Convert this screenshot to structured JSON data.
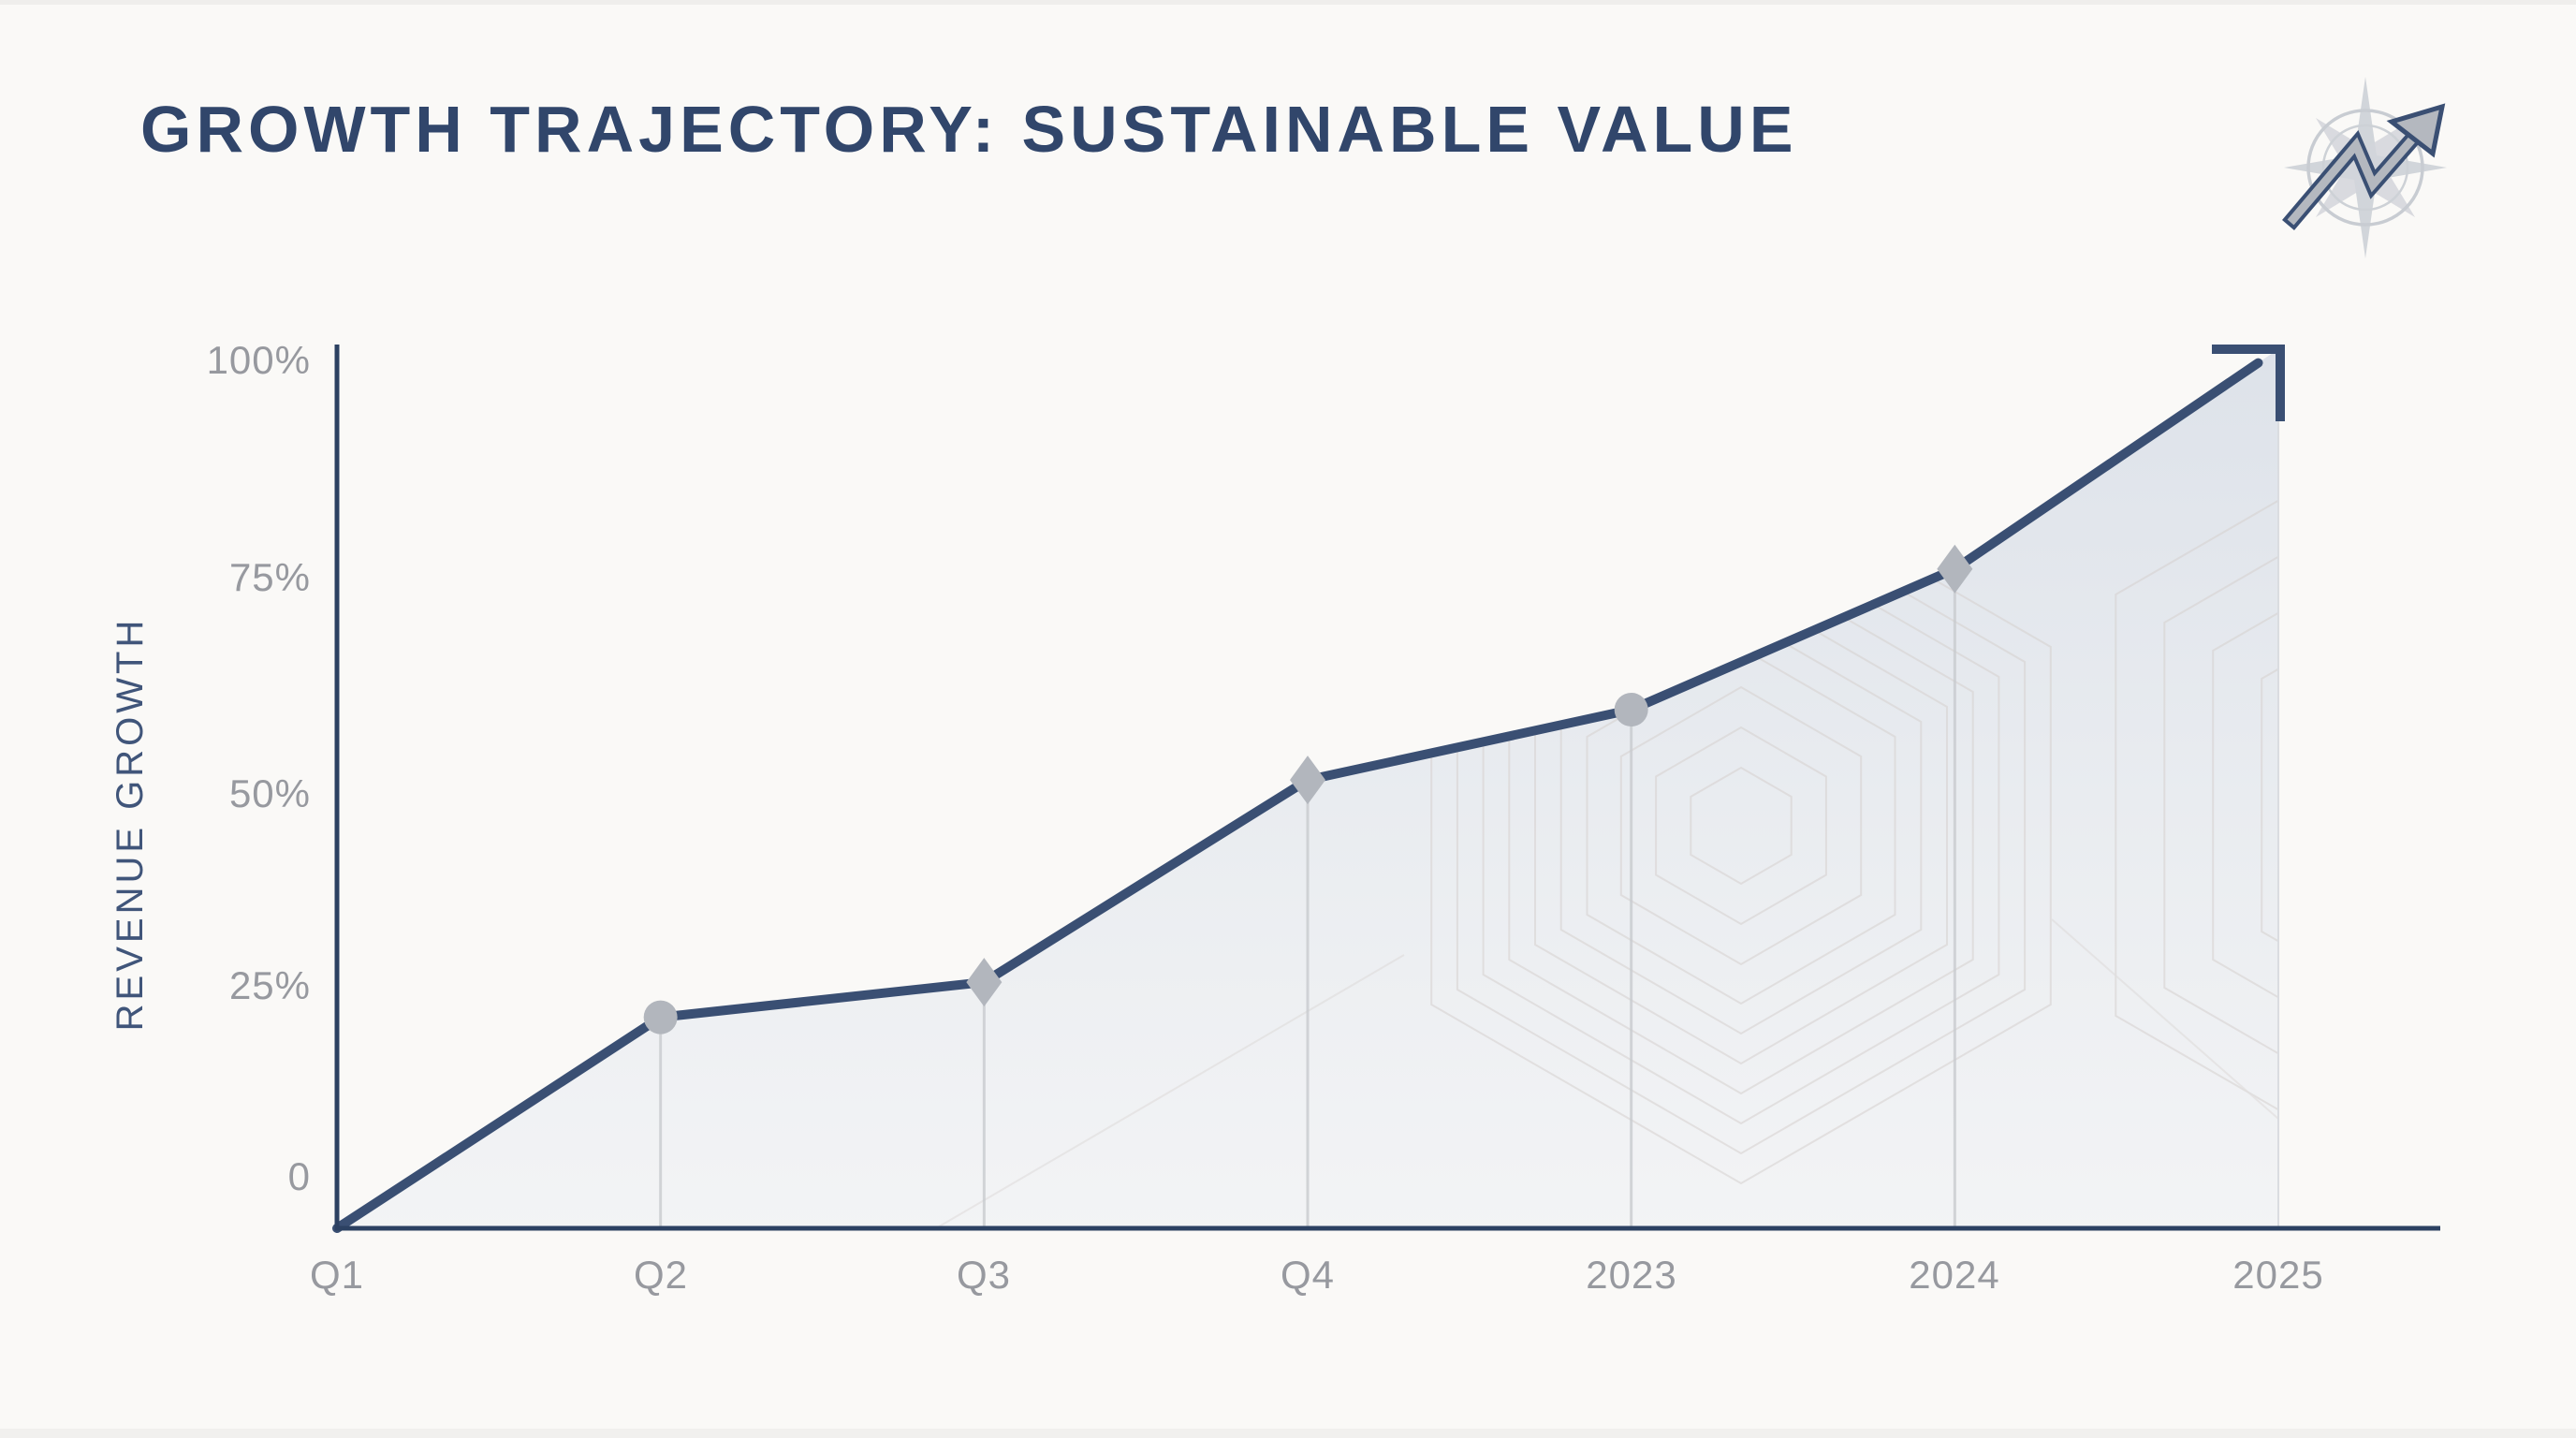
{
  "title": "GROWTH TRAJECTORY: SUSTAINABLE VALUE",
  "y_axis": {
    "label": "REVENUE GROWTH",
    "ticks": [
      "100%",
      "75%",
      "50%",
      "25%",
      "0"
    ]
  },
  "x_axis": {
    "ticks": [
      "Q1",
      "Q2",
      "Q3",
      "Q4",
      "2023",
      "2024",
      "2025"
    ]
  },
  "icons": {
    "corner": "compass-rose-with-trend-arrow"
  },
  "colors": {
    "background": "#faf9f7",
    "title": "#31466b",
    "trend_line": "#3a4f73",
    "axis": "#2c4162",
    "marker": "#b2b6bd",
    "tick_text": "#97999f",
    "area_top": "#dde2ea",
    "area_bottom": "#f1f3f5"
  },
  "chart_data": {
    "type": "area",
    "x": [
      "Q1",
      "Q2",
      "Q3",
      "Q4",
      "2023",
      "2024",
      "2025"
    ],
    "values": [
      0,
      24,
      28,
      51,
      59,
      75,
      100
    ],
    "markers": [
      "none",
      "circle",
      "diamond",
      "diamond",
      "circle",
      "diamond",
      "arrow"
    ],
    "title": "GROWTH TRAJECTORY: SUSTAINABLE VALUE",
    "xlabel": "",
    "ylabel": "REVENUE GROWTH",
    "ylim": [
      0,
      100
    ],
    "yticks": [
      100,
      75,
      50,
      25,
      0
    ],
    "grid": false,
    "legend": false,
    "annotation": "line ends in upward arrow at 100% for 2025"
  }
}
